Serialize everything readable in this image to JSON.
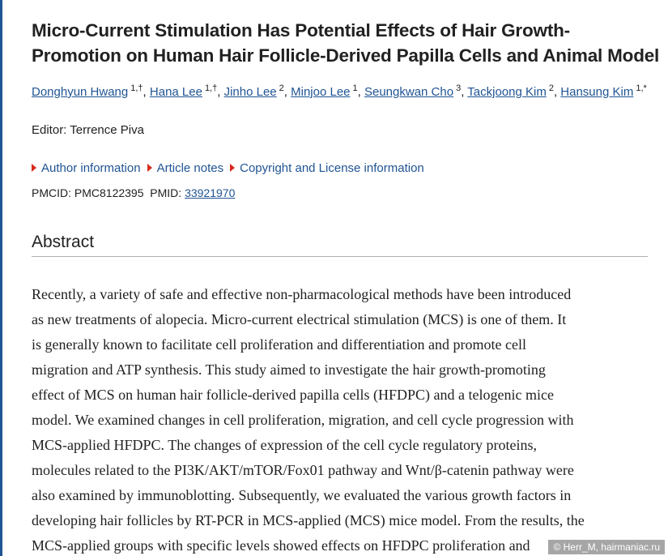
{
  "title": [
    "Micro-Current Stimulation Has Potential Effects of Hair Growth-",
    "Promotion on Human Hair Follicle-Derived Papilla Cells and Animal Model"
  ],
  "authors": [
    {
      "name": "Donghyun Hwang",
      "affil": "1,†"
    },
    {
      "name": "Hana Lee",
      "affil": "1,†"
    },
    {
      "name": "Jinho Lee",
      "affil": "2"
    },
    {
      "name": "Minjoo Lee",
      "affil": "1"
    },
    {
      "name": "Seungkwan Cho",
      "affil": "3"
    },
    {
      "name": "Tackjoong Kim",
      "affil": "2"
    },
    {
      "name": "Hansung Kim",
      "affil": "1,*"
    }
  ],
  "editor": "Editor: Terrence Piva",
  "links": [
    "Author information",
    "Article notes",
    "Copyright and License information"
  ],
  "ids": {
    "pmcid": "PMCID: PMC8122395",
    "pmid_label": "PMID:",
    "pmid": "33921970"
  },
  "abstract": {
    "heading": "Abstract",
    "lines": [
      "Recently, a variety of safe and effective non-pharmacological methods have been introduced",
      "as new treatments of alopecia. Micro-current electrical stimulation (MCS) is one of them. It",
      "is generally known to facilitate cell proliferation and differentiation and promote cell",
      "migration and ATP synthesis. This study aimed to investigate the hair growth-promoting",
      "effect of MCS on human hair follicle-derived papilla cells (HFDPC) and a telogenic mice",
      "model. We examined changes in cell proliferation, migration, and cell cycle progression with",
      "MCS-applied HFDPC. The changes of expression of the cell cycle regulatory proteins,",
      "molecules related to the PI3K/AKT/mTOR/Fox01 pathway and Wnt/β-catenin pathway were",
      "also examined by immunoblotting. Subsequently, we evaluated the various growth factors in",
      "developing hair follicles by RT-PCR in MCS-applied (MCS) mice model. From the results, the",
      "MCS-applied groups with specific levels showed effects on HFDPC proliferation and"
    ]
  },
  "watermark": "© Herr_M, hairmaniac.ru"
}
